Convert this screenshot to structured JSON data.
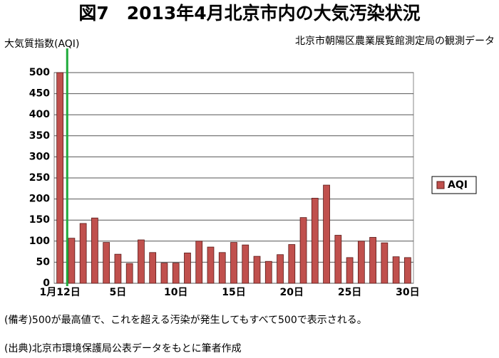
{
  "chart_data": {
    "type": "bar",
    "title": "図7　2013年4月北京市内の大気汚染状況",
    "y_label": "大気質指数(AQI)",
    "subtitle": "北京市朝陽区農業展覧館測定局の観測データ",
    "categories": [
      "1月12日",
      null,
      null,
      null,
      null,
      "5日",
      null,
      null,
      null,
      null,
      "10日",
      null,
      null,
      null,
      null,
      "15日",
      null,
      null,
      null,
      null,
      "20日",
      null,
      null,
      null,
      null,
      "25日",
      null,
      null,
      null,
      null,
      "30日"
    ],
    "series": [
      {
        "name": "AQI",
        "color": "#c0504d",
        "values": [
          500,
          107,
          142,
          155,
          97,
          69,
          47,
          103,
          73,
          48,
          48,
          72,
          100,
          86,
          73,
          97,
          91,
          64,
          52,
          68,
          92,
          156,
          202,
          233,
          114,
          61,
          100,
          109,
          96,
          63,
          61
        ]
      }
    ],
    "ylim": [
      0,
      500
    ],
    "yticks": [
      0,
      50,
      100,
      150,
      200,
      250,
      300,
      350,
      400,
      450,
      500
    ],
    "grid": true,
    "legend": "right",
    "notes": [
      "(備考)500が最高値で、これを超える汚染が発生してもすべて500で表示される。",
      "(出典)北京市環境保護局公表データをもとに筆者作成"
    ]
  }
}
